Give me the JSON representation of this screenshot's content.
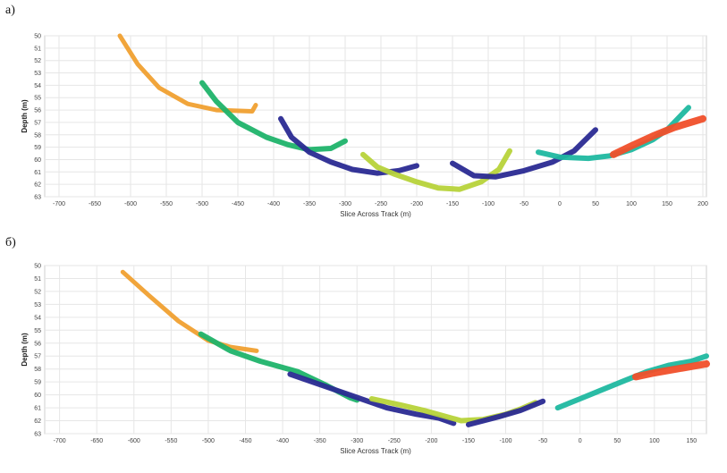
{
  "chart_data": [
    {
      "type": "scatter",
      "panel_label": "a)",
      "title": "",
      "xlabel": "Slice Across Track (m)",
      "ylabel": "Depth (m)",
      "xlim": [
        -720,
        205
      ],
      "ylim": [
        50,
        63
      ],
      "y_inverted": true,
      "x_ticks": [
        -700,
        -650,
        -600,
        -550,
        -500,
        -450,
        -400,
        -350,
        -300,
        -250,
        -200,
        -150,
        -100,
        -50,
        0,
        50,
        100,
        150,
        200
      ],
      "y_ticks": [
        50,
        51,
        52,
        53,
        54,
        55,
        56,
        57,
        58,
        59,
        60,
        61,
        62,
        63
      ],
      "grid": true,
      "series": [
        {
          "name": "orange",
          "color": "#f0a030",
          "width": 5,
          "points": [
            [
              -615,
              50
            ],
            [
              -590,
              52.3
            ],
            [
              -560,
              54.2
            ],
            [
              -520,
              55.5
            ],
            [
              -480,
              56
            ],
            [
              -430,
              56.1
            ],
            [
              -425,
              55.6
            ]
          ]
        },
        {
          "name": "green",
          "color": "#1fb36a",
          "width": 6,
          "points": [
            [
              -500,
              53.8
            ],
            [
              -480,
              55.3
            ],
            [
              -450,
              57
            ],
            [
              -410,
              58.2
            ],
            [
              -380,
              58.8
            ],
            [
              -350,
              59.2
            ],
            [
              -320,
              59.1
            ],
            [
              -300,
              58.5
            ]
          ]
        },
        {
          "name": "navy",
          "color": "#2a2a92",
          "width": 6,
          "points": [
            [
              -390,
              56.7
            ],
            [
              -375,
              58.2
            ],
            [
              -350,
              59.4
            ],
            [
              -320,
              60.2
            ],
            [
              -290,
              60.8
            ],
            [
              -255,
              61.1
            ],
            [
              -225,
              60.9
            ],
            [
              -200,
              60.5
            ]
          ]
        },
        {
          "name": "lime",
          "color": "#b7d33a",
          "width": 6,
          "points": [
            [
              -275,
              59.6
            ],
            [
              -255,
              60.6
            ],
            [
              -230,
              61.2
            ],
            [
              -200,
              61.8
            ],
            [
              -170,
              62.3
            ],
            [
              -140,
              62.4
            ],
            [
              -110,
              61.8
            ],
            [
              -85,
              60.8
            ],
            [
              -70,
              59.3
            ]
          ]
        },
        {
          "name": "navy2",
          "color": "#2a2a92",
          "width": 6,
          "points": [
            [
              -150,
              60.3
            ],
            [
              -120,
              61.3
            ],
            [
              -90,
              61.4
            ],
            [
              -50,
              60.9
            ],
            [
              -10,
              60.2
            ],
            [
              20,
              59.3
            ],
            [
              50,
              57.6
            ]
          ]
        },
        {
          "name": "teal",
          "color": "#1fb8a0",
          "width": 6,
          "points": [
            [
              -30,
              59.4
            ],
            [
              0,
              59.8
            ],
            [
              40,
              59.9
            ],
            [
              70,
              59.7
            ],
            [
              100,
              59.2
            ],
            [
              130,
              58.4
            ],
            [
              150,
              57.6
            ],
            [
              180,
              55.8
            ]
          ]
        },
        {
          "name": "red",
          "color": "#f04f2a",
          "width": 8,
          "points": [
            [
              75,
              59.6
            ],
            [
              100,
              58.9
            ],
            [
              130,
              58.1
            ],
            [
              160,
              57.4
            ],
            [
              200,
              56.7
            ]
          ]
        }
      ]
    },
    {
      "type": "scatter",
      "panel_label": "б)",
      "title": "",
      "xlabel": "Slice Across Track (m)",
      "ylabel": "Depth (m)",
      "xlim": [
        -720,
        170
      ],
      "ylim": [
        50,
        63
      ],
      "y_inverted": true,
      "x_ticks": [
        -700,
        -650,
        -600,
        -550,
        -500,
        -450,
        -400,
        -350,
        -300,
        -250,
        -200,
        -150,
        -100,
        -50,
        0,
        50,
        100,
        150
      ],
      "y_ticks": [
        50,
        51,
        52,
        53,
        54,
        55,
        56,
        57,
        58,
        59,
        60,
        61,
        62,
        63
      ],
      "grid": true,
      "series": [
        {
          "name": "orange",
          "color": "#f0a030",
          "width": 5,
          "points": [
            [
              -615,
              50.5
            ],
            [
              -580,
              52.3
            ],
            [
              -540,
              54.3
            ],
            [
              -500,
              55.8
            ],
            [
              -470,
              56.3
            ],
            [
              -435,
              56.6
            ]
          ]
        },
        {
          "name": "green",
          "color": "#1fb36a",
          "width": 6,
          "points": [
            [
              -510,
              55.3
            ],
            [
              -470,
              56.6
            ],
            [
              -430,
              57.4
            ],
            [
              -380,
              58.2
            ],
            [
              -340,
              59.3
            ],
            [
              -310,
              60.2
            ],
            [
              -300,
              60.4
            ]
          ]
        },
        {
          "name": "navy",
          "color": "#2a2a92",
          "width": 6,
          "points": [
            [
              -390,
              58.4
            ],
            [
              -350,
              59.2
            ],
            [
              -300,
              60.2
            ],
            [
              -260,
              61
            ],
            [
              -220,
              61.5
            ],
            [
              -190,
              61.8
            ],
            [
              -170,
              62.2
            ]
          ]
        },
        {
          "name": "lime",
          "color": "#b7d33a",
          "width": 6,
          "points": [
            [
              -280,
              60.3
            ],
            [
              -240,
              60.8
            ],
            [
              -210,
              61.2
            ],
            [
              -160,
              62
            ],
            [
              -130,
              61.9
            ],
            [
              -100,
              61.5
            ],
            [
              -80,
              61.1
            ],
            [
              -60,
              60.6
            ]
          ]
        },
        {
          "name": "navy2",
          "color": "#2a2a92",
          "width": 6,
          "points": [
            [
              -150,
              62.3
            ],
            [
              -110,
              61.7
            ],
            [
              -80,
              61.2
            ],
            [
              -50,
              60.5
            ]
          ]
        },
        {
          "name": "teal",
          "color": "#1fb8a0",
          "width": 6,
          "points": [
            [
              -30,
              61
            ],
            [
              0,
              60.3
            ],
            [
              30,
              59.6
            ],
            [
              60,
              58.9
            ],
            [
              90,
              58.2
            ],
            [
              120,
              57.7
            ],
            [
              150,
              57.4
            ],
            [
              170,
              57
            ]
          ]
        },
        {
          "name": "red",
          "color": "#f04f2a",
          "width": 8,
          "points": [
            [
              75,
              58.6
            ],
            [
              100,
              58.3
            ],
            [
              130,
              58
            ],
            [
              170,
              57.6
            ]
          ]
        }
      ]
    }
  ]
}
